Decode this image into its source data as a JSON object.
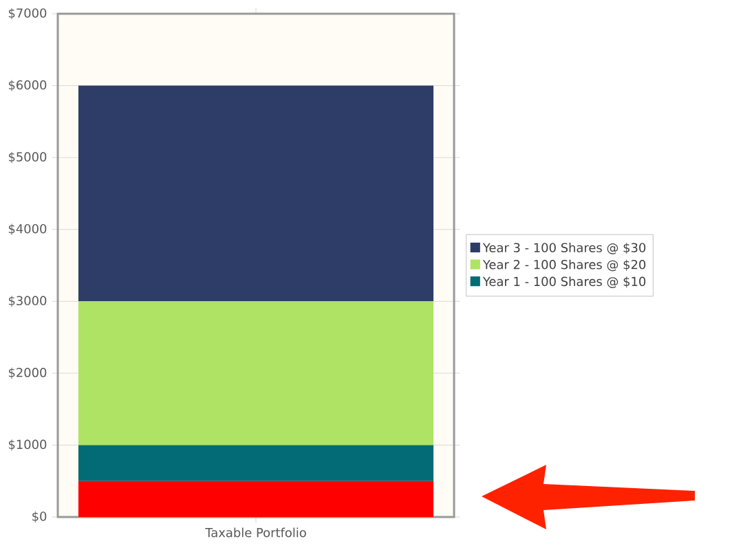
{
  "chart_data": {
    "type": "bar",
    "stacked": true,
    "categories": [
      "Taxable Portfolio"
    ],
    "series": [
      {
        "color": "#ff0000",
        "values": [
          500
        ]
      },
      {
        "name": "Year 1 - 100 Shares @ $10",
        "color": "#036b75",
        "values": [
          500
        ]
      },
      {
        "name": "Year 2 - 100 Shares @ $20",
        "color": "#aee363",
        "values": [
          2000
        ]
      },
      {
        "name": "Year 3 - 100 Shares @ $30",
        "color": "#2e3d68",
        "values": [
          3000
        ]
      }
    ],
    "ylim": [
      0,
      7000
    ],
    "yticks": [
      {
        "value": 0,
        "label": "$0"
      },
      {
        "value": 1000,
        "label": "$1000"
      },
      {
        "value": 2000,
        "label": "$2000"
      },
      {
        "value": 3000,
        "label": "$3000"
      },
      {
        "value": 4000,
        "label": "$4000"
      },
      {
        "value": 5000,
        "label": "$5000"
      },
      {
        "value": 6000,
        "label": "$6000"
      },
      {
        "value": 7000,
        "label": "$7000"
      }
    ],
    "grid": "y",
    "legend": "right"
  }
}
